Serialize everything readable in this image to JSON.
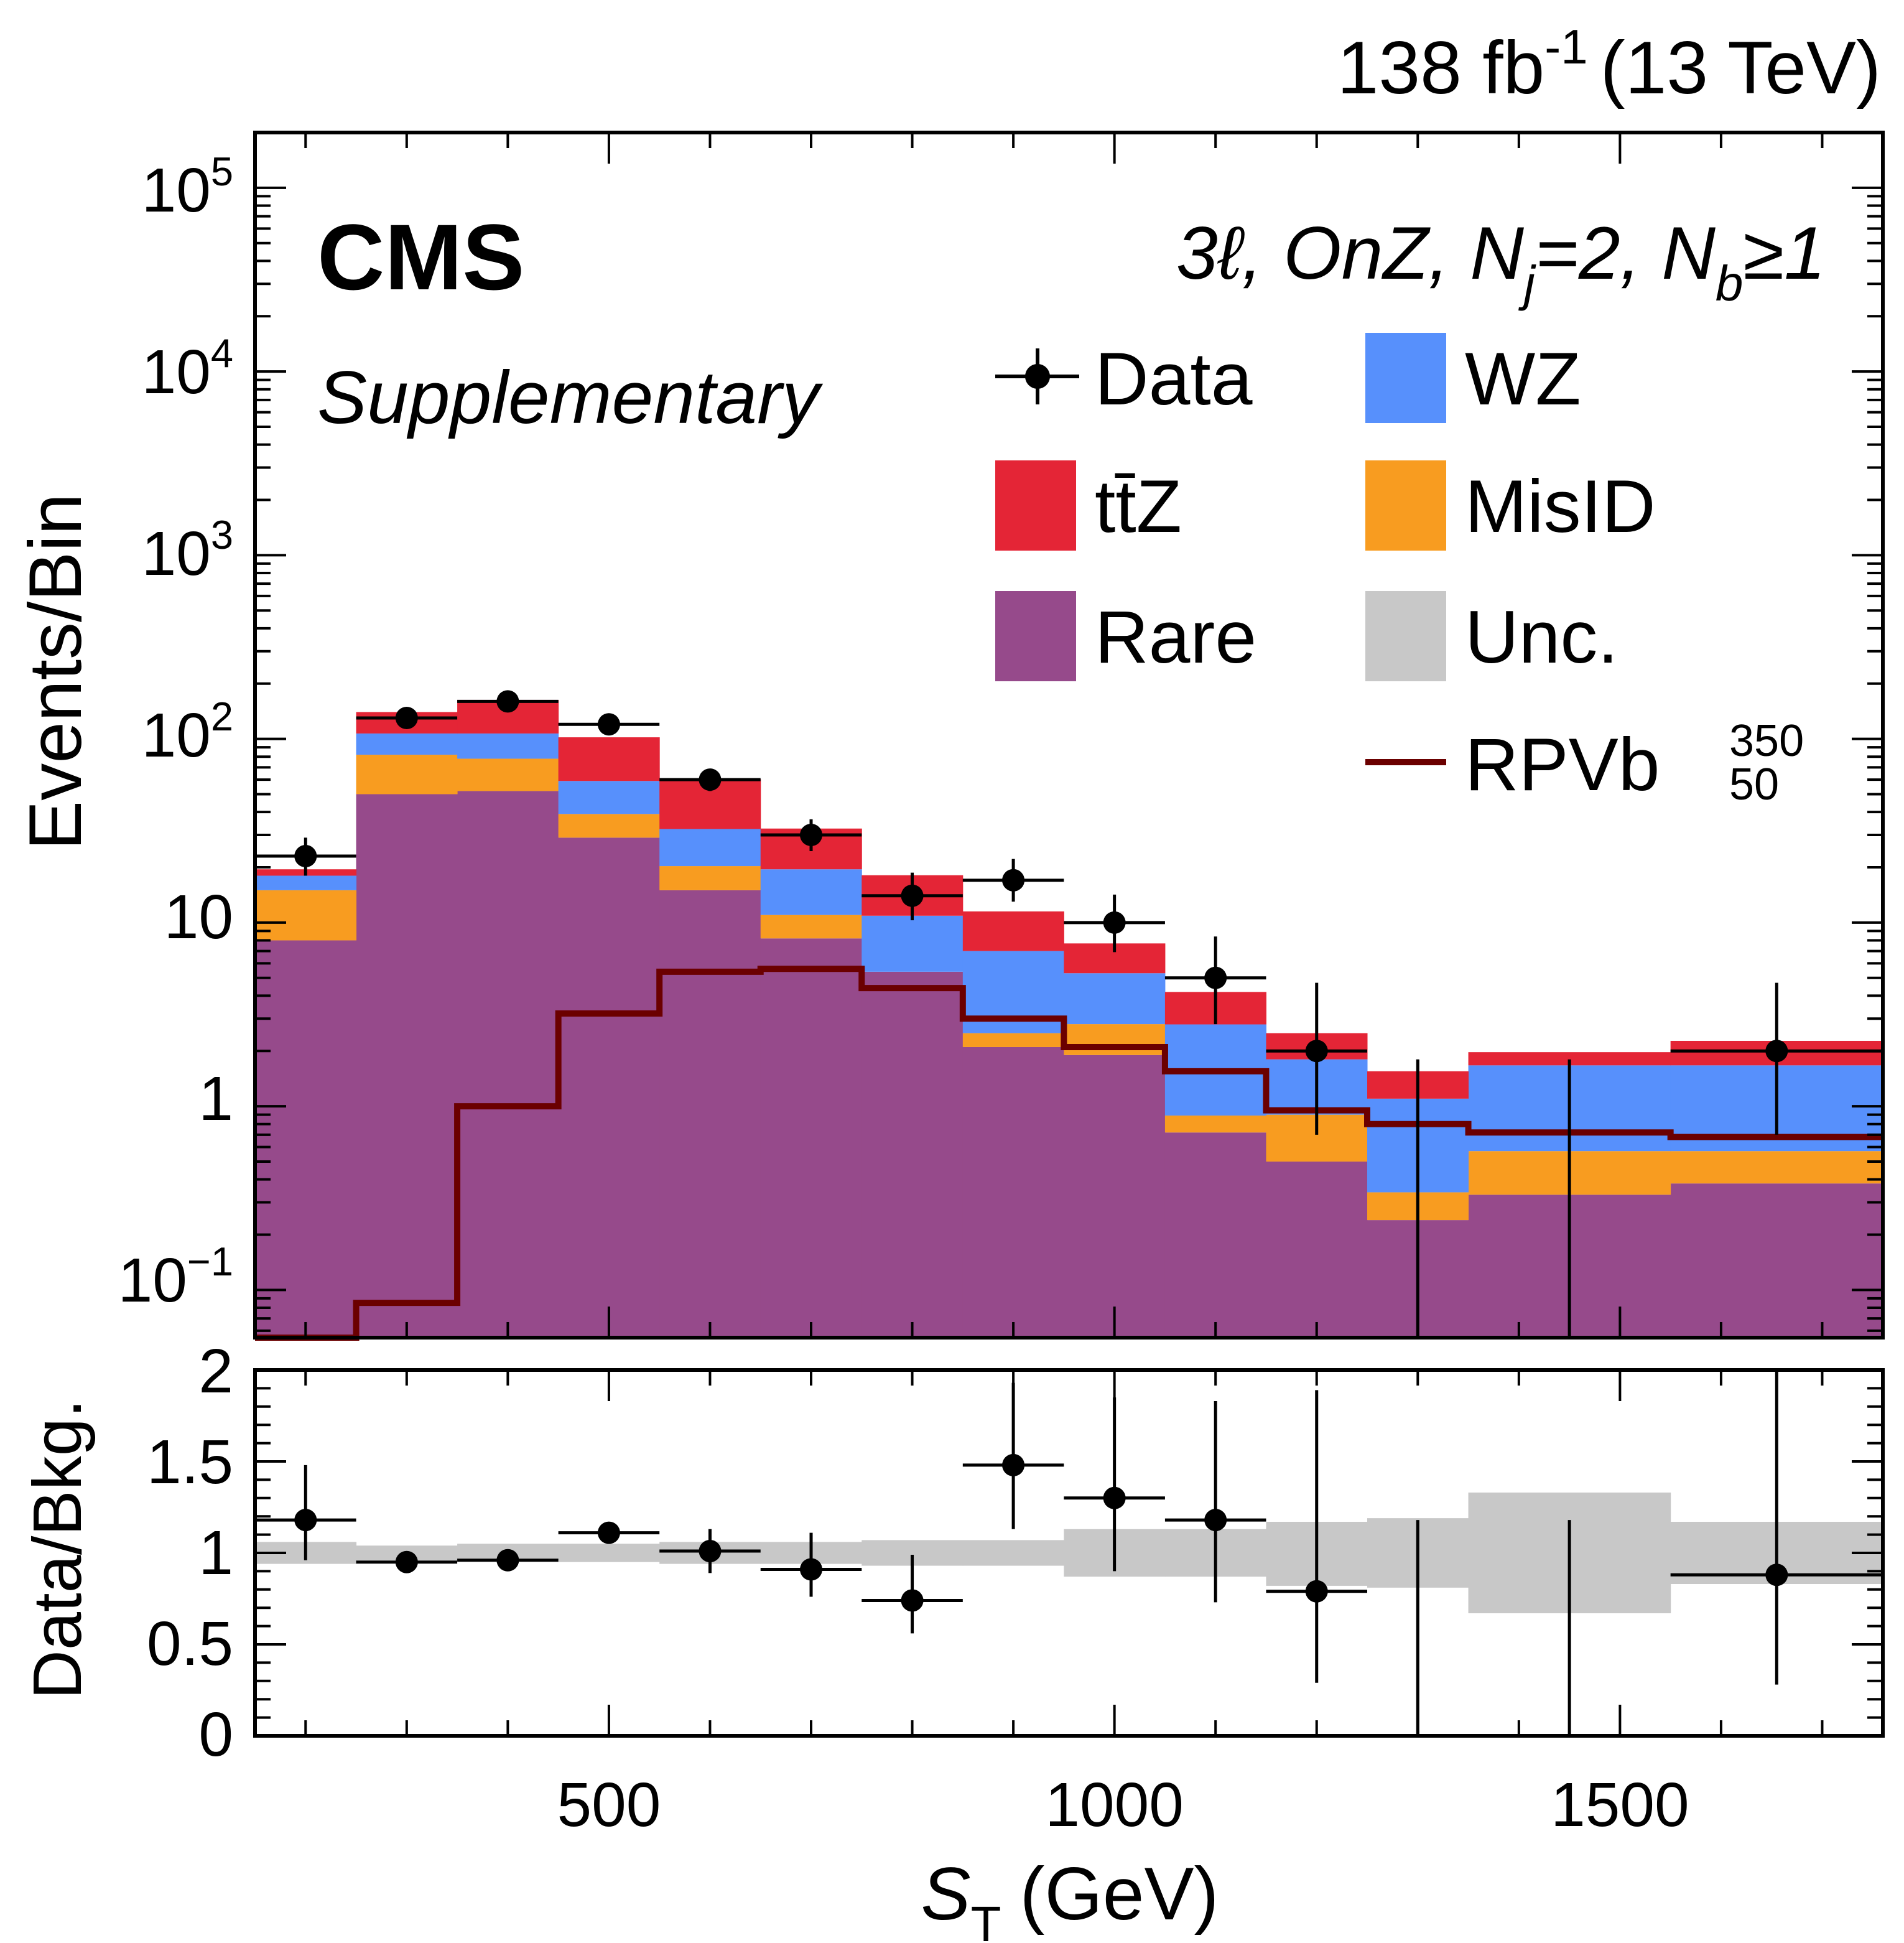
{
  "header": {
    "lumi": "138 fb",
    "lumi_sup": "-1",
    "energy": "(13 TeV)",
    "experiment": "CMS",
    "tag": "Supplementary",
    "region": "3ℓ, OnZ, N",
    "region_j_sub": "j",
    "region_mid": "=2, N",
    "region_b_sub": "b",
    "region_end": "≥1"
  },
  "legend": {
    "data": "Data",
    "wz": "WZ",
    "ttz": "tt̄Z",
    "misid": "MisID",
    "rare": "Rare",
    "unc": "Unc.",
    "signal": "RPVb",
    "signal_sup": "350",
    "signal_sub": "50"
  },
  "colors": {
    "rare": "#964a8b",
    "misid": "#f89c20",
    "wz": "#5790fc",
    "ttz": "#e42536",
    "unc": "#c8c8c8",
    "signal": "#6b0000",
    "data": "#000000"
  },
  "chart_data": [
    {
      "type": "bar",
      "stacked": true,
      "scale": "log",
      "ylabel": "Events/Bin",
      "ylim": [
        0.055,
        200000
      ],
      "yticks": [
        "10^-1",
        "1",
        "10",
        "10^2",
        "10^3",
        "10^4",
        "10^5"
      ],
      "xlim": [
        150,
        1760
      ],
      "bin_edges": [
        150,
        250,
        350,
        450,
        550,
        650,
        750,
        850,
        950,
        1050,
        1150,
        1250,
        1350,
        1550,
        1760
      ],
      "series": [
        {
          "name": "Rare",
          "values": [
            8,
            50,
            52,
            29,
            15,
            8.2,
            5.4,
            2.1,
            1.9,
            0.72,
            0.5,
            0.24,
            0.33,
            0.38
          ]
        },
        {
          "name": "MisID",
          "values": [
            7,
            32,
            26,
            10,
            5.3,
            2.8,
            0.0,
            0.4,
            0.9,
            0.17,
            0.4,
            0.1,
            0.24,
            0.19
          ]
        },
        {
          "name": "WZ",
          "values": [
            3,
            25,
            29,
            20,
            12,
            8.5,
            5.5,
            4.5,
            2.5,
            1.9,
            0.9,
            0.76,
            1.1,
            1.1
          ]
        },
        {
          "name": "tt̄Z",
          "values": [
            1.5,
            33,
            56,
            43,
            28,
            13,
            7.2,
            4.5,
            2.4,
            1.4,
            0.7,
            0.45,
            0.3,
            0.6
          ]
        }
      ],
      "data": {
        "name": "Data",
        "x": [
          200,
          300,
          400,
          500,
          600,
          700,
          800,
          900,
          1000,
          1100,
          1200,
          1300,
          1450,
          1655
        ],
        "y": [
          23,
          130,
          160,
          120,
          60,
          30,
          14,
          17,
          10,
          5,
          2,
          null,
          null,
          2
        ],
        "err_low": [
          5,
          12,
          13,
          11,
          8,
          5.5,
          3.7,
          4,
          3.1,
          2.2,
          1.3,
          null,
          null,
          1.3
        ],
        "err_high": [
          6,
          12,
          13,
          11,
          8,
          6.5,
          4.7,
          5.2,
          4.2,
          3.4,
          2.7,
          1.8,
          1.8,
          2.7
        ]
      },
      "signal": {
        "name": "RPVb",
        "values": [
          0.04,
          0.085,
          1.0,
          3.2,
          5.4,
          5.6,
          4.4,
          3.0,
          2.1,
          1.55,
          0.95,
          0.8,
          0.72,
          0.68
        ]
      }
    },
    {
      "type": "scatter",
      "ylabel": "Data/Bkg.",
      "xlabel": "S",
      "xlabel_sub": "T",
      "xlabel_unit": "(GeV)",
      "ylim": [
        0,
        2
      ],
      "yticks": [
        "0",
        "0.5",
        "1",
        "1.5",
        "2"
      ],
      "xticks": [
        "500",
        "1000",
        "1500"
      ],
      "xtick_values": [
        500,
        1000,
        1500
      ],
      "ratio": {
        "x": [
          200,
          300,
          400,
          500,
          600,
          700,
          800,
          900,
          1000,
          1100,
          1200,
          1300,
          1450,
          1655
        ],
        "y": [
          1.18,
          0.95,
          0.96,
          1.11,
          1.01,
          0.91,
          0.74,
          1.48,
          1.3,
          1.18,
          0.79,
          null,
          null,
          0.88
        ],
        "err_low": [
          0.22,
          0.05,
          0.05,
          0.06,
          0.12,
          0.15,
          0.18,
          0.35,
          0.4,
          0.45,
          0.5,
          null,
          null,
          0.6
        ],
        "err_high": [
          0.3,
          0.05,
          0.05,
          0.06,
          0.12,
          0.2,
          0.25,
          0.45,
          0.55,
          0.65,
          1.1,
          1.18,
          1.18,
          1.35
        ]
      },
      "unc_band": {
        "low": [
          0.94,
          0.96,
          0.96,
          0.95,
          0.94,
          0.94,
          0.93,
          0.93,
          0.87,
          0.87,
          0.82,
          0.81,
          0.67,
          0.83
        ],
        "high": [
          1.06,
          1.04,
          1.05,
          1.05,
          1.06,
          1.06,
          1.07,
          1.07,
          1.13,
          1.13,
          1.17,
          1.19,
          1.33,
          1.17
        ]
      }
    }
  ]
}
